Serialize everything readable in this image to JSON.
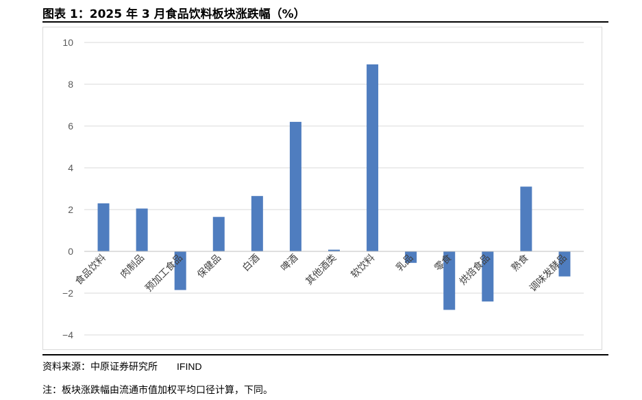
{
  "figure": {
    "title": "图表 1：2025 年 3 月食品饮料板块涨跌幅（%）",
    "source_label": "资料来源：中原证券研究所",
    "source_suffix": "IFIND",
    "note": "注：板块涨跌幅由流通市值加权平均口径计算，下同。"
  },
  "chart_data": {
    "type": "bar",
    "title": "",
    "xlabel": "",
    "ylabel": "",
    "ylim": [
      -4,
      10
    ],
    "yticks": [
      10,
      8,
      6,
      4,
      2,
      0,
      -2,
      -4
    ],
    "grid": true,
    "legend": "none",
    "bar_color": "#4f7dbf",
    "categories": [
      "食品饮料",
      "肉制品",
      "预加工食品",
      "保健品",
      "白酒",
      "啤酒",
      "其他酒类",
      "软饮料",
      "乳品",
      "零食",
      "烘焙食品",
      "熟食",
      "调味发酵品"
    ],
    "values": [
      2.3,
      2.05,
      -1.85,
      1.65,
      2.65,
      6.2,
      0.08,
      8.95,
      -0.55,
      -2.8,
      -2.4,
      3.1,
      -1.2
    ]
  }
}
